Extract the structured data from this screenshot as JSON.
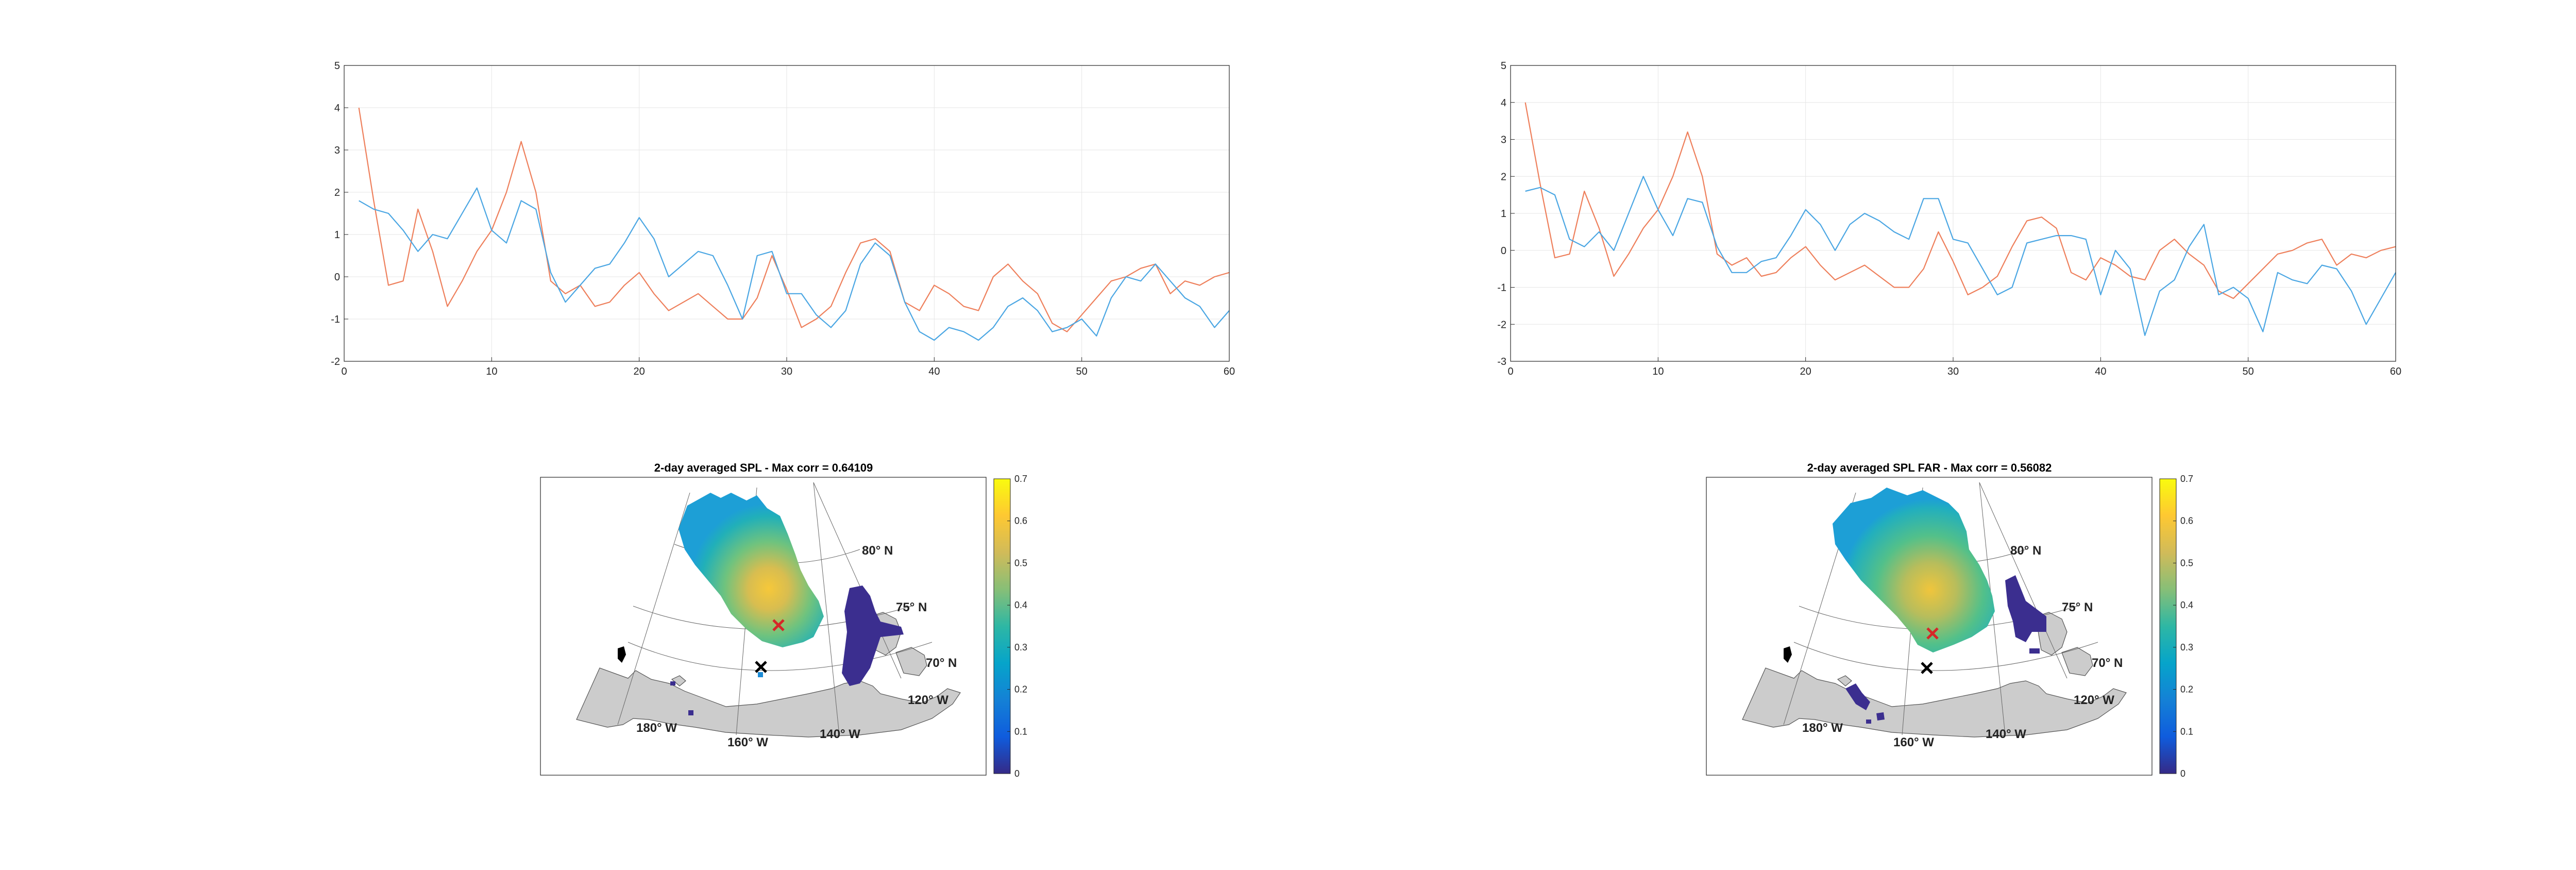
{
  "colors": {
    "series_1": "#ee7f5b",
    "series_2": "#4aa6e3",
    "grid": "#e6e6e6",
    "axis": "#262626",
    "land": "#cccccc",
    "coastline": "#555555",
    "max_marker": "#d62728",
    "site_marker": "#000000",
    "colormap": [
      "#352a87",
      "#0f5cdd",
      "#1481d6",
      "#06a4ca",
      "#2eb7a4",
      "#87bf77",
      "#d1bb59",
      "#fec832",
      "#f9fb0e"
    ]
  },
  "chart_data": [
    {
      "type": "line",
      "xlim": [
        0,
        60
      ],
      "ylim": [
        -2,
        5
      ],
      "xticks": [
        "0",
        "10",
        "20",
        "30",
        "40",
        "50",
        "60"
      ],
      "yticks": [
        "-2",
        "-1",
        "0",
        "1",
        "2",
        "3",
        "4",
        "5"
      ],
      "grid": true,
      "series": [
        {
          "color": "#ee7f5b",
          "x": [
            1,
            2,
            3,
            4,
            5,
            6,
            7,
            8,
            9,
            10,
            11,
            12,
            13,
            14,
            15,
            16,
            17,
            18,
            19,
            20,
            21,
            22,
            23,
            24,
            25,
            26,
            27,
            28,
            29,
            30,
            31,
            32,
            33,
            34,
            35,
            36,
            37,
            38,
            39,
            40,
            41,
            42,
            43,
            44,
            45,
            46,
            47,
            48,
            49,
            50,
            51,
            52,
            53,
            54,
            55,
            56,
            57,
            58,
            59,
            60
          ],
          "values": [
            4.0,
            1.8,
            -0.2,
            -0.1,
            1.6,
            0.6,
            -0.7,
            -0.1,
            0.6,
            1.1,
            2.0,
            3.2,
            2.0,
            -0.1,
            -0.4,
            -0.2,
            -0.7,
            -0.6,
            -0.2,
            0.1,
            -0.4,
            -0.8,
            -0.6,
            -0.4,
            -0.7,
            -1.0,
            -1.0,
            -0.5,
            0.5,
            -0.3,
            -1.2,
            -1.0,
            -0.7,
            0.1,
            0.8,
            0.9,
            0.6,
            -0.6,
            -0.8,
            -0.2,
            -0.4,
            -0.7,
            -0.8,
            0.0,
            0.3,
            -0.1,
            -0.4,
            -1.1,
            -1.3,
            -0.9,
            -0.5,
            -0.1,
            0.0,
            0.2,
            0.3,
            -0.4,
            -0.1,
            -0.2,
            0.0,
            0.1
          ]
        },
        {
          "color": "#4aa6e3",
          "x": [
            1,
            2,
            3,
            4,
            5,
            6,
            7,
            8,
            9,
            10,
            11,
            12,
            13,
            14,
            15,
            16,
            17,
            18,
            19,
            20,
            21,
            22,
            23,
            24,
            25,
            26,
            27,
            28,
            29,
            30,
            31,
            32,
            33,
            34,
            35,
            36,
            37,
            38,
            39,
            40,
            41,
            42,
            43,
            44,
            45,
            46,
            47,
            48,
            49,
            50,
            51,
            52,
            53,
            54,
            55,
            56,
            57,
            58,
            59,
            60
          ],
          "values": [
            1.8,
            1.6,
            1.5,
            1.1,
            0.6,
            1.0,
            0.9,
            1.5,
            2.1,
            1.1,
            0.8,
            1.8,
            1.6,
            0.1,
            -0.6,
            -0.2,
            0.2,
            0.3,
            0.8,
            1.4,
            0.9,
            0.0,
            0.3,
            0.6,
            0.5,
            -0.2,
            -1.0,
            0.5,
            0.6,
            -0.4,
            -0.4,
            -0.9,
            -1.2,
            -0.8,
            0.3,
            0.8,
            0.5,
            -0.6,
            -1.3,
            -1.5,
            -1.2,
            -1.3,
            -1.5,
            -1.2,
            -0.7,
            -0.5,
            -0.8,
            -1.3,
            -1.2,
            -1.0,
            -1.4,
            -0.5,
            0.0,
            -0.1,
            0.3,
            -0.1,
            -0.5,
            -0.7,
            -1.2,
            -0.8
          ]
        }
      ]
    },
    {
      "type": "line",
      "xlim": [
        0,
        60
      ],
      "ylim": [
        -3,
        5
      ],
      "xticks": [
        "0",
        "10",
        "20",
        "30",
        "40",
        "50",
        "60"
      ],
      "yticks": [
        "-3",
        "-2",
        "-1",
        "0",
        "1",
        "2",
        "3",
        "4",
        "5"
      ],
      "grid": true,
      "series": [
        {
          "color": "#ee7f5b",
          "x": [
            1,
            2,
            3,
            4,
            5,
            6,
            7,
            8,
            9,
            10,
            11,
            12,
            13,
            14,
            15,
            16,
            17,
            18,
            19,
            20,
            21,
            22,
            23,
            24,
            25,
            26,
            27,
            28,
            29,
            30,
            31,
            32,
            33,
            34,
            35,
            36,
            37,
            38,
            39,
            40,
            41,
            42,
            43,
            44,
            45,
            46,
            47,
            48,
            49,
            50,
            51,
            52,
            53,
            54,
            55,
            56,
            57,
            58,
            59,
            60
          ],
          "values": [
            4.0,
            1.8,
            -0.2,
            -0.1,
            1.6,
            0.6,
            -0.7,
            -0.1,
            0.6,
            1.1,
            2.0,
            3.2,
            2.0,
            -0.1,
            -0.4,
            -0.2,
            -0.7,
            -0.6,
            -0.2,
            0.1,
            -0.4,
            -0.8,
            -0.6,
            -0.4,
            -0.7,
            -1.0,
            -1.0,
            -0.5,
            0.5,
            -0.3,
            -1.2,
            -1.0,
            -0.7,
            0.1,
            0.8,
            0.9,
            0.6,
            -0.6,
            -0.8,
            -0.2,
            -0.4,
            -0.7,
            -0.8,
            0.0,
            0.3,
            -0.1,
            -0.4,
            -1.1,
            -1.3,
            -0.9,
            -0.5,
            -0.1,
            0.0,
            0.2,
            0.3,
            -0.4,
            -0.1,
            -0.2,
            0.0,
            0.1
          ]
        },
        {
          "color": "#4aa6e3",
          "x": [
            1,
            2,
            3,
            4,
            5,
            6,
            7,
            8,
            9,
            10,
            11,
            12,
            13,
            14,
            15,
            16,
            17,
            18,
            19,
            20,
            21,
            22,
            23,
            24,
            25,
            26,
            27,
            28,
            29,
            30,
            31,
            32,
            33,
            34,
            35,
            36,
            37,
            38,
            39,
            40,
            41,
            42,
            43,
            44,
            45,
            46,
            47,
            48,
            49,
            50,
            51,
            52,
            53,
            54,
            55,
            56,
            57,
            58,
            59,
            60
          ],
          "values": [
            1.6,
            1.7,
            1.5,
            0.3,
            0.1,
            0.5,
            0.0,
            1.0,
            2.0,
            1.1,
            0.4,
            1.4,
            1.3,
            0.1,
            -0.6,
            -0.6,
            -0.3,
            -0.2,
            0.4,
            1.1,
            0.7,
            0.0,
            0.7,
            1.0,
            0.8,
            0.5,
            0.3,
            1.4,
            1.4,
            0.3,
            0.2,
            -0.5,
            -1.2,
            -1.0,
            0.2,
            0.3,
            0.4,
            0.4,
            0.3,
            -1.2,
            0.0,
            -0.5,
            -2.3,
            -1.1,
            -0.8,
            0.1,
            0.7,
            -1.2,
            -1.0,
            -1.3,
            -2.2,
            -0.6,
            -0.8,
            -0.9,
            -0.4,
            -0.5,
            -1.1,
            -2.0,
            -1.3,
            -0.6
          ]
        }
      ]
    },
    {
      "type": "heatmap",
      "title": "2-day averaged SPL - Max corr = 0.64109",
      "colorbar": {
        "min": 0,
        "max": 0.7,
        "ticks": [
          "0",
          "0.1",
          "0.2",
          "0.3",
          "0.4",
          "0.5",
          "0.6",
          "0.7"
        ]
      },
      "lat_labels": [
        "80° N",
        "75° N",
        "70° N"
      ],
      "lon_labels": [
        "180° W",
        "160° W",
        "140° W",
        "120° W"
      ]
    },
    {
      "type": "heatmap",
      "title": "2-day averaged SPL FAR - Max corr = 0.56082",
      "colorbar": {
        "min": 0,
        "max": 0.7,
        "ticks": [
          "0",
          "0.1",
          "0.2",
          "0.3",
          "0.4",
          "0.5",
          "0.6",
          "0.7"
        ]
      },
      "lat_labels": [
        "80° N",
        "75° N",
        "70° N"
      ],
      "lon_labels": [
        "180° W",
        "160° W",
        "140° W",
        "120° W"
      ]
    }
  ]
}
